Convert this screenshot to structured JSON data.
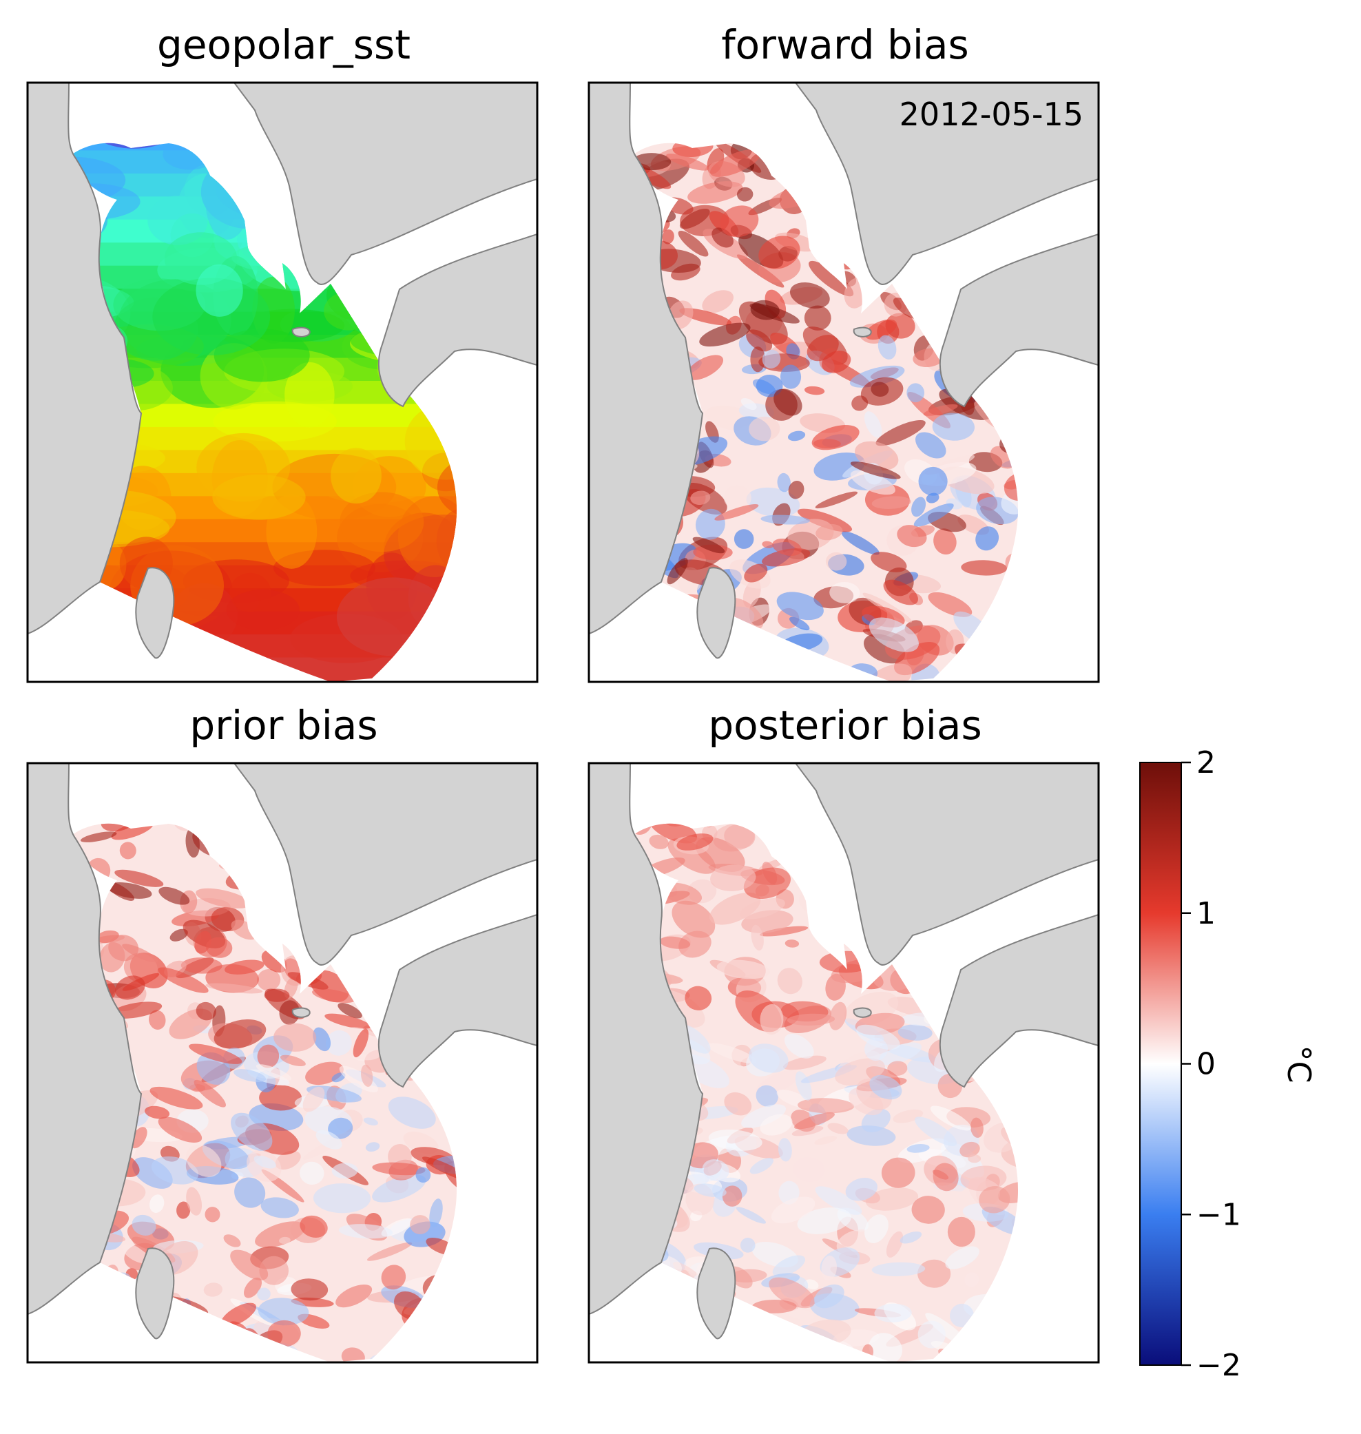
{
  "chart_data": {
    "type": "heatmap",
    "date_annotation": "2012-05-15",
    "panels": [
      {
        "id": "geopolar_sst",
        "title": "geopolar_sst",
        "colormap": "jet",
        "field": "sst"
      },
      {
        "id": "forward_bias",
        "title": "forward bias",
        "colormap": "red-white-blue",
        "field": "bias",
        "pattern_strength": 1.35
      },
      {
        "id": "prior_bias",
        "title": "prior bias",
        "colormap": "red-white-blue",
        "field": "bias",
        "pattern_strength": 1.0
      },
      {
        "id": "posterior_bias",
        "title": "posterior bias",
        "colormap": "red-white-blue",
        "field": "bias",
        "pattern_strength": 0.55
      }
    ],
    "colorbar": {
      "label": "°C",
      "range": [
        -2,
        2
      ],
      "ticks": [
        2,
        1,
        0,
        -1,
        -2
      ],
      "tick_labels": [
        "2",
        "1",
        "0",
        "−1",
        "−2"
      ],
      "colors": [
        "#0a0d7a",
        "#3a7ef0",
        "#ffffff",
        "#e63a2d",
        "#6e0f0a"
      ]
    },
    "colors": {
      "land": "#d3d3d3",
      "coastline": "#808080",
      "frame": "#000000"
    }
  }
}
